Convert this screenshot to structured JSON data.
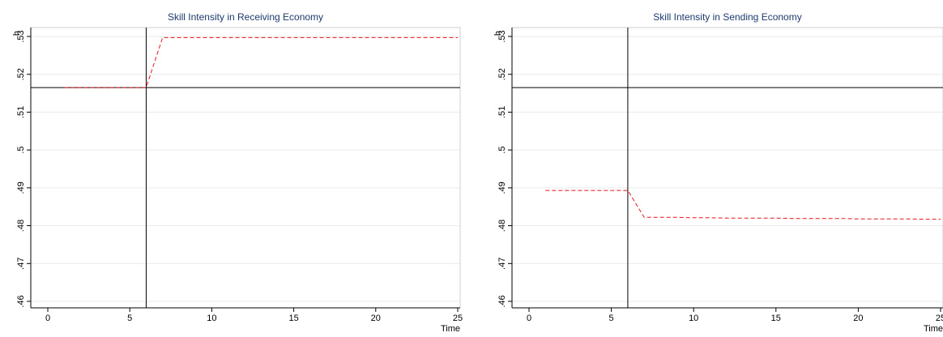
{
  "chart_data": [
    {
      "type": "line",
      "title": "Skill Intensity in Receiving Economy",
      "xlabel": "Time",
      "ylabel": "h",
      "xlim": [
        0,
        25
      ],
      "ylim": [
        0.46,
        0.53
      ],
      "xticks": [
        0,
        5,
        10,
        15,
        20,
        25
      ],
      "xtick_labels": [
        "0",
        "5",
        "10",
        "15",
        "20",
        "25"
      ],
      "yticks": [
        0.46,
        0.47,
        0.48,
        0.49,
        0.5,
        0.51,
        0.52,
        0.53
      ],
      "ytick_labels": [
        ".46",
        ".47",
        ".48",
        ".49",
        ".5",
        ".51",
        ".52",
        ".53"
      ],
      "grid": true,
      "vline": 6,
      "hline": 0.5165,
      "series": [
        {
          "line_style": "dashed",
          "color": "#e8141e",
          "x": [
            1,
            2,
            3,
            4,
            5,
            6,
            7,
            8,
            9,
            10,
            11,
            12,
            13,
            14,
            15,
            16,
            17,
            18,
            19,
            20,
            21,
            22,
            23,
            24,
            25
          ],
          "y": [
            0.5165,
            0.5165,
            0.5165,
            0.5165,
            0.5165,
            0.5165,
            0.5297,
            0.5297,
            0.5297,
            0.5297,
            0.5297,
            0.5297,
            0.5297,
            0.5297,
            0.5297,
            0.5297,
            0.5297,
            0.5297,
            0.5297,
            0.5297,
            0.5297,
            0.5297,
            0.5297,
            0.5297,
            0.5297
          ]
        }
      ]
    },
    {
      "type": "line",
      "title": "Skill Intensity in Sending Economy",
      "xlabel": "Time",
      "ylabel": "h",
      "xlim": [
        0,
        25
      ],
      "ylim": [
        0.46,
        0.53
      ],
      "xticks": [
        0,
        5,
        10,
        15,
        20,
        25
      ],
      "xtick_labels": [
        "0",
        "5",
        "10",
        "15",
        "20",
        "25"
      ],
      "yticks": [
        0.46,
        0.47,
        0.48,
        0.49,
        0.5,
        0.51,
        0.52,
        0.53
      ],
      "ytick_labels": [
        ".46",
        ".47",
        ".48",
        ".49",
        ".5",
        ".51",
        ".52",
        ".53"
      ],
      "grid": true,
      "vline": 6,
      "hline": 0.5165,
      "series": [
        {
          "line_style": "dashed",
          "color": "#e8141e",
          "x": [
            1,
            2,
            3,
            4,
            5,
            6,
            7,
            8,
            9,
            10,
            11,
            12,
            13,
            14,
            15,
            16,
            17,
            18,
            19,
            20,
            21,
            22,
            23,
            24,
            25
          ],
          "y": [
            0.4893,
            0.4893,
            0.4893,
            0.4893,
            0.4893,
            0.4893,
            0.4822,
            0.4822,
            0.4822,
            0.4821,
            0.4821,
            0.482,
            0.482,
            0.482,
            0.482,
            0.4819,
            0.4819,
            0.4819,
            0.4819,
            0.4818,
            0.4818,
            0.4818,
            0.4818,
            0.4817,
            0.4817
          ]
        }
      ]
    }
  ]
}
